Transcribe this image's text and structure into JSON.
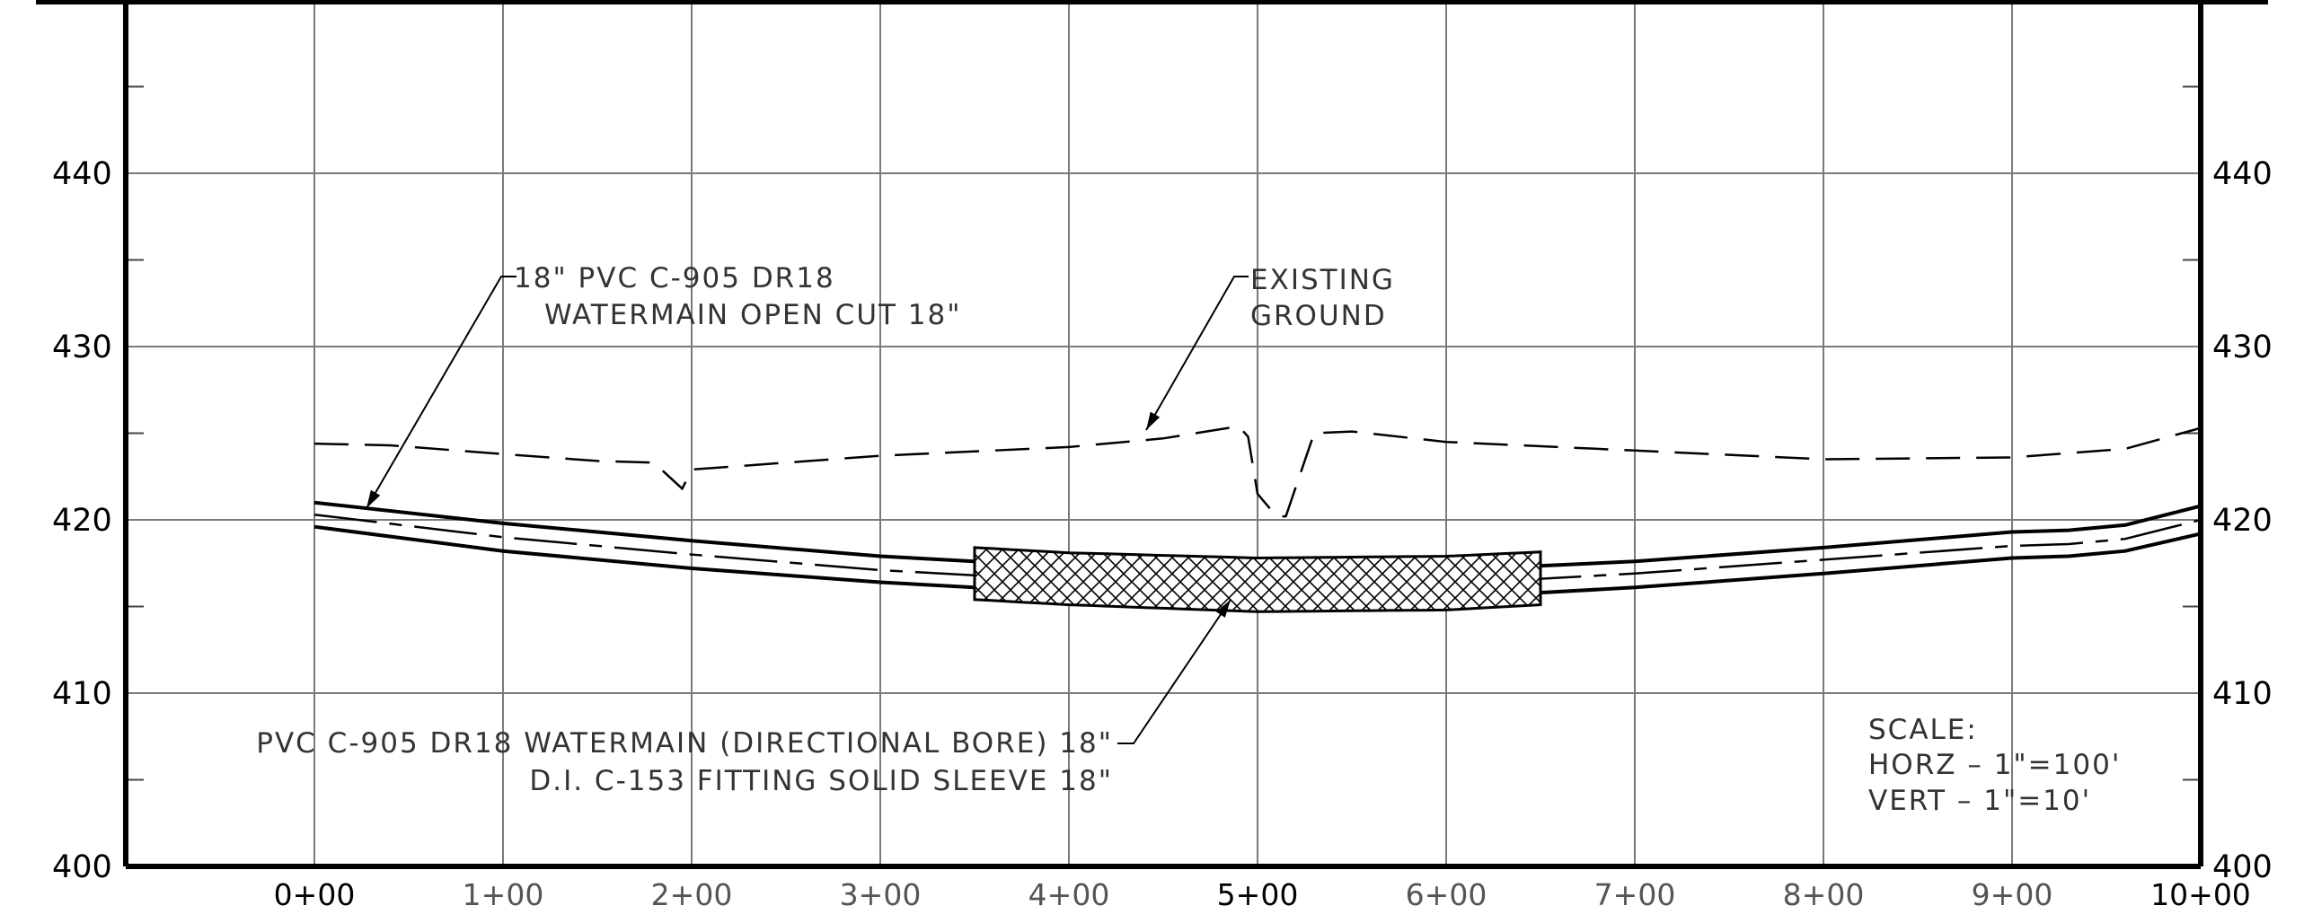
{
  "chart_data": {
    "type": "line",
    "x_unit": "station (ft)",
    "y_unit": "elevation (ft)",
    "xlim": [
      -100,
      1000
    ],
    "ylim": [
      400,
      450
    ],
    "grid": true,
    "y_ticks": [
      "400",
      "410",
      "420",
      "430",
      "440"
    ],
    "x_ticks": [
      {
        "station": 0,
        "label": "0+00",
        "major": true
      },
      {
        "station": 100,
        "label": "1+00",
        "major": false
      },
      {
        "station": 200,
        "label": "2+00",
        "major": false
      },
      {
        "station": 300,
        "label": "3+00",
        "major": false
      },
      {
        "station": 400,
        "label": "4+00",
        "major": false
      },
      {
        "station": 500,
        "label": "5+00",
        "major": true
      },
      {
        "station": 600,
        "label": "6+00",
        "major": false
      },
      {
        "station": 700,
        "label": "7+00",
        "major": false
      },
      {
        "station": 800,
        "label": "8+00",
        "major": false
      },
      {
        "station": 900,
        "label": "9+00",
        "major": false
      },
      {
        "station": 1000,
        "label": "10+00",
        "major": true
      }
    ],
    "series": [
      {
        "style": "dashed",
        "x": [
          0,
          40,
          100,
          150,
          180,
          195,
          200,
          300,
          400,
          450,
          490,
          495,
          500,
          510,
          515,
          530,
          550,
          600,
          700,
          800,
          900,
          960,
          1000
        ],
        "y": [
          424.4,
          424.3,
          423.8,
          423.4,
          423.3,
          421.8,
          422.9,
          423.7,
          424.2,
          424.7,
          425.4,
          424.8,
          421.5,
          420.2,
          420.2,
          425.0,
          425.1,
          424.5,
          424.0,
          423.5,
          423.6,
          424.1,
          425.3
        ]
      },
      {
        "style": "solid",
        "x": [
          0,
          100,
          200,
          300,
          400,
          500,
          600,
          700,
          800,
          900,
          930,
          960,
          1000
        ],
        "y": [
          421.0,
          419.8,
          418.8,
          417.9,
          417.3,
          417.0,
          417.1,
          417.6,
          418.4,
          419.3,
          419.4,
          419.7,
          420.8
        ]
      },
      {
        "style": "dash-dot",
        "x": [
          0,
          100,
          200,
          300,
          400,
          500,
          600,
          700,
          800,
          900,
          930,
          960,
          1000
        ],
        "y": [
          420.3,
          419.0,
          418.0,
          417.1,
          416.5,
          416.2,
          416.3,
          416.9,
          417.7,
          418.5,
          418.6,
          418.9,
          420.0
        ]
      },
      {
        "style": "solid",
        "x": [
          0,
          100,
          200,
          300,
          400,
          500,
          600,
          700,
          800,
          900,
          930,
          960,
          1000
        ],
        "y": [
          419.6,
          418.2,
          417.2,
          416.4,
          415.8,
          415.4,
          415.5,
          416.1,
          416.9,
          417.8,
          417.9,
          418.2,
          419.2
        ]
      }
    ],
    "sleeve": {
      "x_start": 350,
      "x_end": 650,
      "top_offset": 0.8,
      "bottom_offset": 0.7
    },
    "annotations": [
      {
        "lines": [
          "18\" PVC C-905 DR18",
          "WATERMAIN OPEN CUT 18\""
        ]
      },
      {
        "lines": [
          "EXISTING",
          "GROUND"
        ]
      },
      {
        "lines": [
          "PVC C-905 DR18 WATERMAIN (DIRECTIONAL BORE) 18\"",
          "D.I. C-153 FITTING SOLID SLEEVE 18\""
        ]
      }
    ],
    "scale_note": [
      "SCALE:",
      "HORZ  –  1\"=100'",
      "VERT  –  1\"=10'"
    ]
  }
}
